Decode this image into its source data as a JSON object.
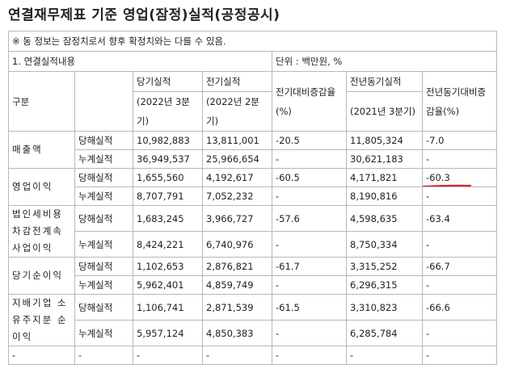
{
  "title": "연결재무제표 기준 영업(잠정)실적(공정공시)",
  "note": "※ 동 정보는 잠정치로서 향후 확정치와는 다를 수 있음.",
  "section": "1. 연결실적내용",
  "unit": "단위 : 백만원, %",
  "headers": {
    "category": "구분",
    "current": "당기실적",
    "current_period": "(2022년 3분기)",
    "previous": "전기실적",
    "previous_period": "(2022년 2분기)",
    "qoq": "전기대비증감율(%)",
    "yoy_base": "전년동기실적",
    "yoy_base_period": "(2021년 3분기)",
    "yoy": "전년동기대비증감율(%)"
  },
  "groups": [
    {
      "name": "매출액",
      "rows": [
        {
          "type": "당해실적",
          "current": "10,982,883",
          "previous": "13,811,001",
          "qoq": "-20.5",
          "yoy_base": "11,805,324",
          "yoy": "-7.0"
        },
        {
          "type": "누계실적",
          "current": "36,949,537",
          "previous": "25,966,654",
          "qoq": "-",
          "yoy_base": "30,621,183",
          "yoy": "-"
        }
      ]
    },
    {
      "name": "영업이익",
      "rows": [
        {
          "type": "당해실적",
          "current": "1,655,560",
          "previous": "4,192,617",
          "qoq": "-60.5",
          "yoy_base": "4,171,821",
          "yoy": "-60.3"
        },
        {
          "type": "누계실적",
          "current": "8,707,791",
          "previous": "7,052,232",
          "qoq": "-",
          "yoy_base": "8,190,816",
          "yoy": "-"
        }
      ]
    },
    {
      "name": "법인세비용차감전계속사업이익",
      "rows": [
        {
          "type": "당해실적",
          "current": "1,683,245",
          "previous": "3,966,727",
          "qoq": "-57.6",
          "yoy_base": "4,598,635",
          "yoy": "-63.4"
        },
        {
          "type": "누계실적",
          "current": "8,424,221",
          "previous": "6,740,976",
          "qoq": "-",
          "yoy_base": "8,750,334",
          "yoy": "-"
        }
      ]
    },
    {
      "name": "당기순이익",
      "rows": [
        {
          "type": "당해실적",
          "current": "1,102,653",
          "previous": "2,876,821",
          "qoq": "-61.7",
          "yoy_base": "3,315,252",
          "yoy": "-66.7"
        },
        {
          "type": "누계실적",
          "current": "5,962,401",
          "previous": "4,859,749",
          "qoq": "-",
          "yoy_base": "6,296,315",
          "yoy": "-"
        }
      ]
    },
    {
      "name": "지배기업 소유주지분 순이익",
      "rows": [
        {
          "type": "당해실적",
          "current": "1,106,741",
          "previous": "2,871,539",
          "qoq": "-61.5",
          "yoy_base": "3,310,823",
          "yoy": "-66.6"
        },
        {
          "type": "누계실적",
          "current": "5,957,124",
          "previous": "4,850,383",
          "qoq": "-",
          "yoy_base": "6,285,784",
          "yoy": "-"
        }
      ]
    }
  ],
  "empty_row": [
    "-",
    "-",
    "-",
    "-",
    "-",
    "-",
    "-"
  ],
  "highlight_color": "#d42a2a"
}
